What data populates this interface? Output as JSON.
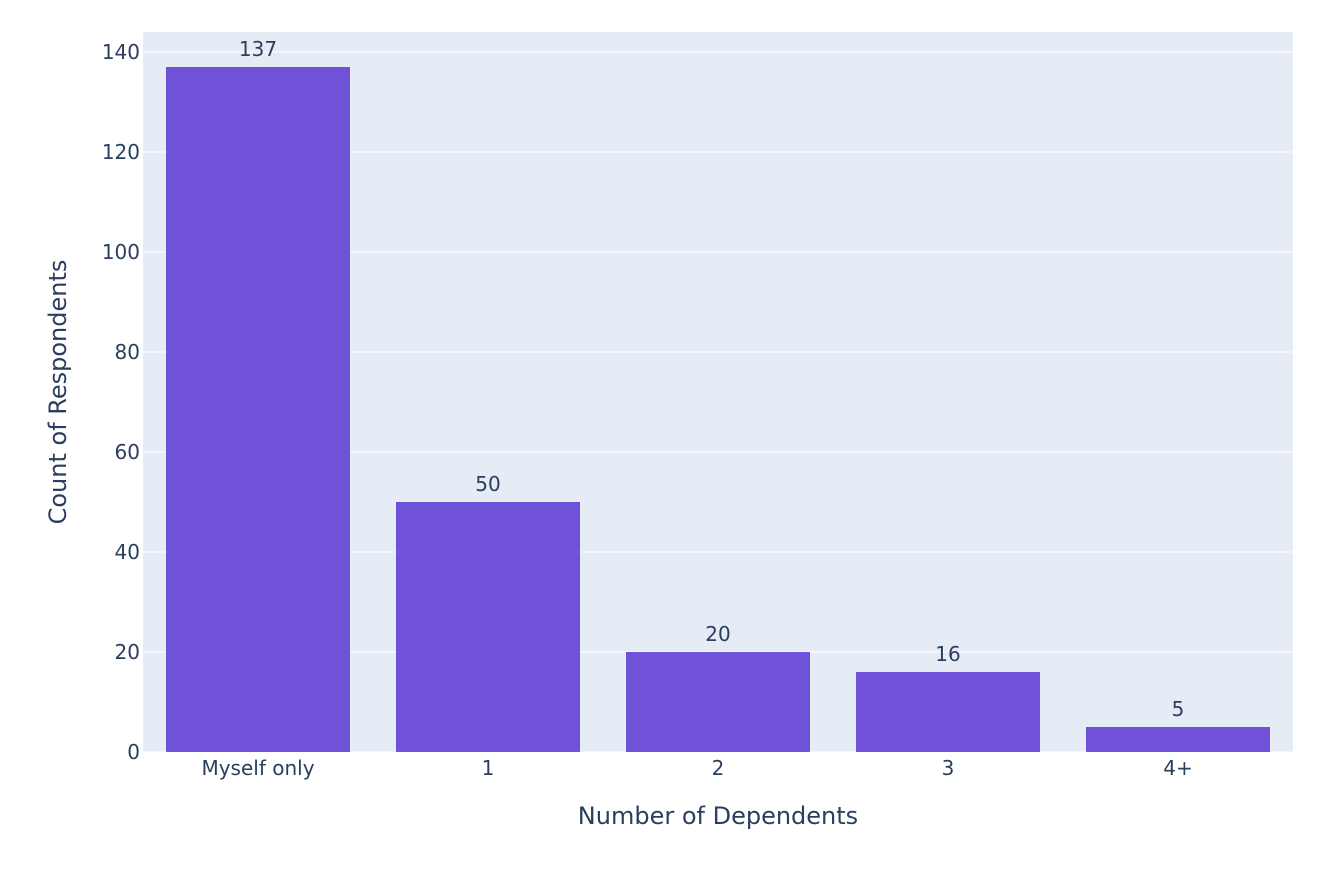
{
  "chart_data": {
    "type": "bar",
    "categories": [
      "Myself only",
      "1",
      "2",
      "3",
      "4+"
    ],
    "values": [
      137,
      50,
      20,
      16,
      5
    ],
    "data_labels": [
      "137",
      "50",
      "20",
      "16",
      "5"
    ],
    "xlabel": "Number of Dependents",
    "ylabel": "Count of Respondents",
    "ylim": [
      0,
      144
    ],
    "yticks": [
      0,
      20,
      40,
      60,
      80,
      100,
      120,
      140
    ],
    "grid": true,
    "legend": "none",
    "colors": {
      "bar": "#7052d8",
      "plot_background": "#e5ecf6",
      "gridline": "#ffffff",
      "text": "#2a3f5f"
    }
  }
}
